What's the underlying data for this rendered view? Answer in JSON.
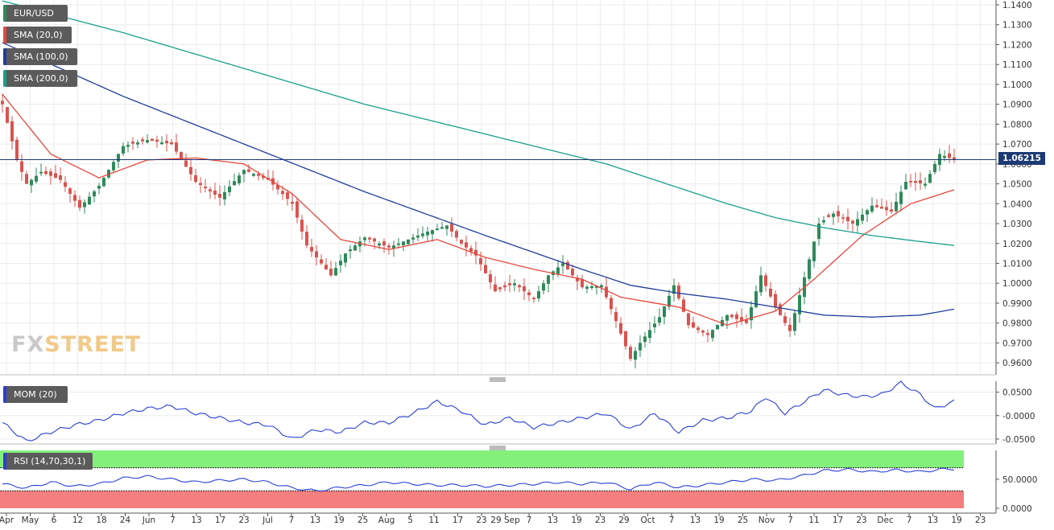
{
  "legend": {
    "symbol": "EUR/USD",
    "sma20": "SMA (20,0)",
    "sma100": "SMA (100,0)",
    "sma200": "SMA (200,0)",
    "mom": "MOM (20)",
    "rsi": "RSI (14,70,30,1)"
  },
  "logo": {
    "part1": "FX",
    "part2": "STREET"
  },
  "last_price": "1.06215",
  "colors": {
    "up": "#2d8a5a",
    "down": "#d9534f",
    "sma20": "#e8473c",
    "sma100": "#1f3f9a",
    "sma200": "#18a08c",
    "indicator": "#2b3fd6",
    "rsi_overbought": "#84f07c",
    "rsi_oversold": "#f47f7f",
    "price_line": "#1c3a73"
  },
  "chart_data": [
    {
      "type": "candlestick",
      "title": "EUR/USD",
      "ylim": [
        0.954,
        1.14
      ],
      "y_ticks": [
        "1.1400",
        "1.1300",
        "1.1200",
        "1.1100",
        "1.1000",
        "1.0900",
        "1.0800",
        "1.0700",
        "1.0600",
        "1.0500",
        "1.0400",
        "1.0300",
        "1.0200",
        "1.0100",
        "1.0000",
        "0.9900",
        "0.9800",
        "0.9700",
        "0.9600"
      ],
      "x_ticks": [
        "Apr",
        "May",
        "6",
        "12",
        "18",
        "24",
        "Jun",
        "7",
        "13",
        "17",
        "23",
        "Jul",
        "7",
        "13",
        "19",
        "25",
        "Aug",
        "5",
        "11",
        "17",
        "23",
        "29 Sep",
        "7",
        "13",
        "19",
        "23",
        "29",
        "Oct",
        "7",
        "13",
        "19",
        "25",
        "Nov",
        "7",
        "11",
        "17",
        "23",
        "Dec",
        "7",
        "13",
        "19",
        "23"
      ],
      "anchors_close": [
        [
          0,
          1.09
        ],
        [
          3,
          1.062
        ],
        [
          5,
          1.05
        ],
        [
          8,
          1.056
        ],
        [
          12,
          1.052
        ],
        [
          16,
          1.038
        ],
        [
          20,
          1.049
        ],
        [
          25,
          1.069
        ],
        [
          30,
          1.072
        ],
        [
          35,
          1.07
        ],
        [
          40,
          1.051
        ],
        [
          45,
          1.043
        ],
        [
          50,
          1.057
        ],
        [
          55,
          1.052
        ],
        [
          60,
          1.04
        ],
        [
          63,
          1.019
        ],
        [
          68,
          1.004
        ],
        [
          71,
          1.015
        ],
        [
          75,
          1.023
        ],
        [
          80,
          1.018
        ],
        [
          84,
          1.022
        ],
        [
          88,
          1.026
        ],
        [
          92,
          1.029
        ],
        [
          95,
          1.02
        ],
        [
          98,
          1.014
        ],
        [
          102,
          0.996
        ],
        [
          106,
          1.0
        ],
        [
          110,
          0.992
        ],
        [
          113,
          1.004
        ],
        [
          116,
          1.01
        ],
        [
          120,
          0.998
        ],
        [
          124,
          0.999
        ],
        [
          127,
          0.981
        ],
        [
          130,
          0.962
        ],
        [
          132,
          0.97
        ],
        [
          136,
          0.983
        ],
        [
          139,
          0.999
        ],
        [
          142,
          0.979
        ],
        [
          146,
          0.974
        ],
        [
          150,
          0.984
        ],
        [
          154,
          0.98
        ],
        [
          157,
          1.004
        ],
        [
          160,
          0.988
        ],
        [
          163,
          0.976
        ],
        [
          166,
          1.003
        ],
        [
          169,
          1.03
        ],
        [
          172,
          1.035
        ],
        [
          176,
          1.03
        ],
        [
          180,
          1.039
        ],
        [
          184,
          1.036
        ],
        [
          187,
          1.051
        ],
        [
          191,
          1.05
        ],
        [
          194,
          1.065
        ],
        [
          197,
          1.062
        ]
      ],
      "current_price": 1.06215,
      "series": [
        {
          "name": "SMA (20,0)",
          "anchors": [
            [
              0,
              1.095
            ],
            [
              10,
              1.065
            ],
            [
              20,
              1.053
            ],
            [
              30,
              1.062
            ],
            [
              40,
              1.063
            ],
            [
              50,
              1.06
            ],
            [
              60,
              1.045
            ],
            [
              70,
              1.022
            ],
            [
              80,
              1.017
            ],
            [
              90,
              1.022
            ],
            [
              100,
              1.013
            ],
            [
              110,
              1.007
            ],
            [
              120,
              1.002
            ],
            [
              128,
              0.993
            ],
            [
              140,
              0.988
            ],
            [
              150,
              0.979
            ],
            [
              160,
              0.986
            ],
            [
              168,
              1.002
            ],
            [
              178,
              1.024
            ],
            [
              188,
              1.04
            ],
            [
              197,
              1.047
            ]
          ]
        },
        {
          "name": "SMA (100,0)",
          "anchors": [
            [
              0,
              1.121
            ],
            [
              25,
              1.094
            ],
            [
              50,
              1.07
            ],
            [
              75,
              1.046
            ],
            [
              100,
              1.024
            ],
            [
              120,
              1.007
            ],
            [
              130,
              0.999
            ],
            [
              140,
              0.995
            ],
            [
              150,
              0.992
            ],
            [
              160,
              0.988
            ],
            [
              170,
              0.984
            ],
            [
              180,
              0.983
            ],
            [
              190,
              0.984
            ],
            [
              197,
              0.987
            ]
          ]
        },
        {
          "name": "SMA (200,0)",
          "anchors": [
            [
              0,
              1.142
            ],
            [
              25,
              1.126
            ],
            [
              50,
              1.108
            ],
            [
              75,
              1.09
            ],
            [
              100,
              1.075
            ],
            [
              125,
              1.06
            ],
            [
              140,
              1.048
            ],
            [
              150,
              1.04
            ],
            [
              160,
              1.033
            ],
            [
              170,
              1.028
            ],
            [
              180,
              1.024
            ],
            [
              190,
              1.021
            ],
            [
              197,
              1.019
            ]
          ]
        }
      ]
    },
    {
      "type": "line",
      "title": "MOM (20)",
      "ylim": [
        -0.057,
        0.07
      ],
      "y_ticks": [
        "0.0500",
        "-0.0000",
        "-0.0500"
      ],
      "series": [
        {
          "name": "MOM (20)",
          "anchors": [
            [
              0,
              -0.015
            ],
            [
              5,
              -0.055
            ],
            [
              10,
              -0.035
            ],
            [
              15,
              -0.02
            ],
            [
              20,
              -0.01
            ],
            [
              25,
              0.005
            ],
            [
              30,
              0.015
            ],
            [
              35,
              0.02
            ],
            [
              40,
              0.005
            ],
            [
              45,
              -0.005
            ],
            [
              50,
              -0.015
            ],
            [
              55,
              -0.02
            ],
            [
              60,
              -0.05
            ],
            [
              65,
              -0.03
            ],
            [
              70,
              -0.035
            ],
            [
              75,
              -0.015
            ],
            [
              80,
              -0.015
            ],
            [
              85,
              0.005
            ],
            [
              90,
              0.03
            ],
            [
              95,
              0.01
            ],
            [
              100,
              -0.02
            ],
            [
              105,
              -0.005
            ],
            [
              110,
              -0.025
            ],
            [
              115,
              -0.015
            ],
            [
              120,
              -0.005
            ],
            [
              125,
              0.005
            ],
            [
              130,
              -0.03
            ],
            [
              135,
              0.005
            ],
            [
              140,
              -0.035
            ],
            [
              145,
              -0.01
            ],
            [
              150,
              -0.005
            ],
            [
              155,
              0.01
            ],
            [
              158,
              0.04
            ],
            [
              162,
              0.005
            ],
            [
              166,
              0.03
            ],
            [
              170,
              0.055
            ],
            [
              174,
              0.045
            ],
            [
              178,
              0.04
            ],
            [
              182,
              0.045
            ],
            [
              186,
              0.07
            ],
            [
              190,
              0.045
            ],
            [
              193,
              0.015
            ],
            [
              197,
              0.03
            ]
          ]
        }
      ]
    },
    {
      "type": "line",
      "title": "RSI (14,70,30,1)",
      "ylim": [
        0,
        100
      ],
      "y_ticks": [
        "50.0000",
        "0.0000"
      ],
      "overbought": 70,
      "oversold": 30,
      "series": [
        {
          "name": "RSI (14,70,30,1)",
          "anchors": [
            [
              0,
              42
            ],
            [
              5,
              35
            ],
            [
              10,
              45
            ],
            [
              15,
              38
            ],
            [
              20,
              42
            ],
            [
              25,
              52
            ],
            [
              30,
              55
            ],
            [
              35,
              50
            ],
            [
              40,
              45
            ],
            [
              45,
              48
            ],
            [
              50,
              50
            ],
            [
              55,
              45
            ],
            [
              60,
              35
            ],
            [
              65,
              30
            ],
            [
              70,
              36
            ],
            [
              75,
              40
            ],
            [
              80,
              45
            ],
            [
              85,
              42
            ],
            [
              90,
              40
            ],
            [
              95,
              40
            ],
            [
              100,
              38
            ],
            [
              105,
              40
            ],
            [
              110,
              42
            ],
            [
              115,
              45
            ],
            [
              120,
              42
            ],
            [
              125,
              45
            ],
            [
              130,
              33
            ],
            [
              135,
              45
            ],
            [
              140,
              36
            ],
            [
              145,
              40
            ],
            [
              150,
              45
            ],
            [
              155,
              50
            ],
            [
              160,
              48
            ],
            [
              165,
              55
            ],
            [
              170,
              65
            ],
            [
              175,
              67
            ],
            [
              180,
              63
            ],
            [
              185,
              66
            ],
            [
              190,
              63
            ],
            [
              194,
              67
            ],
            [
              197,
              68
            ]
          ]
        }
      ]
    }
  ]
}
